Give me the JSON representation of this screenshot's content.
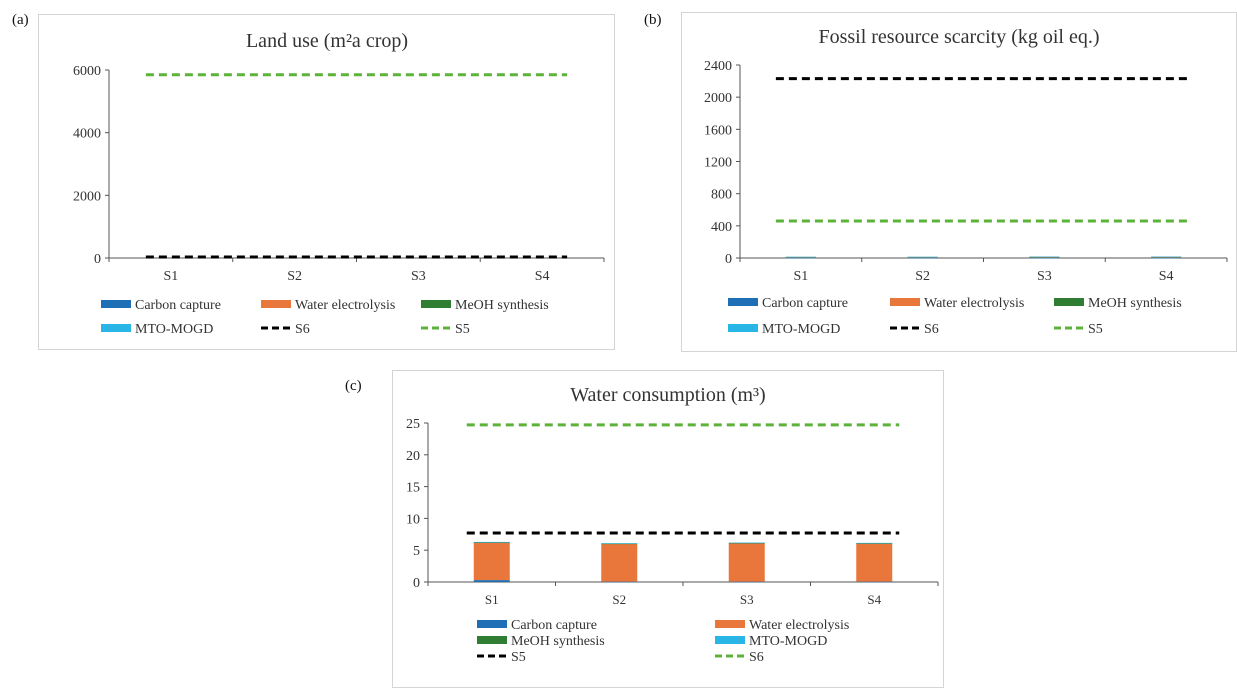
{
  "panels": [
    {
      "letter": "(a)"
    },
    {
      "letter": "(b)"
    },
    {
      "letter": "(c)"
    }
  ],
  "chart_data": [
    {
      "type": "bar",
      "stacked": true,
      "title": "Land use (m²a crop)",
      "categories": [
        "S1",
        "S2",
        "S3",
        "S4"
      ],
      "ylim": [
        0,
        6000
      ],
      "yticks": [
        "0",
        "2000",
        "4000",
        "6000"
      ],
      "series": [
        {
          "name": "Carbon capture",
          "color": "#1f6fb6",
          "values": [
            2,
            2,
            2,
            2
          ]
        },
        {
          "name": "Water electrolysis",
          "color": "#e9773b",
          "values": [
            10,
            10,
            10,
            10
          ]
        },
        {
          "name": "MeOH synthesis",
          "color": "#2e7d32",
          "values": [
            1,
            1,
            1,
            1
          ]
        },
        {
          "name": "MTO-MOGD",
          "color": "#29b6e6",
          "values": [
            1,
            1,
            1,
            1
          ]
        }
      ],
      "reference_lines": [
        {
          "name": "S6",
          "color": "#000000",
          "value": 30
        },
        {
          "name": "S5",
          "color": "#5db33a",
          "value": 5850
        }
      ],
      "grid": false,
      "legend": "bottom"
    },
    {
      "type": "bar",
      "stacked": true,
      "title": "Fossil resource scarcity (kg oil eq.)",
      "categories": [
        "S1",
        "S2",
        "S3",
        "S4"
      ],
      "ylim": [
        0,
        2400
      ],
      "yticks": [
        "0",
        "400",
        "800",
        "1200",
        "1600",
        "2000",
        "2400"
      ],
      "series": [
        {
          "name": "Carbon capture",
          "color": "#1f6fb6",
          "values": [
            3,
            3,
            3,
            3
          ]
        },
        {
          "name": "Water electrolysis",
          "color": "#e9773b",
          "values": [
            10,
            10,
            12,
            12
          ]
        },
        {
          "name": "MeOH synthesis",
          "color": "#2e7d32",
          "values": [
            1,
            1,
            1,
            1
          ]
        },
        {
          "name": "MTO-MOGD",
          "color": "#29b6e6",
          "values": [
            1,
            1,
            1,
            1
          ]
        }
      ],
      "reference_lines": [
        {
          "name": "S6",
          "color": "#000000",
          "value": 2230
        },
        {
          "name": "S5",
          "color": "#5db33a",
          "value": 460
        }
      ],
      "grid": false,
      "legend": "bottom"
    },
    {
      "type": "bar",
      "stacked": true,
      "title": "Water consumption (m³)",
      "categories": [
        "S1",
        "S2",
        "S3",
        "S4"
      ],
      "ylim": [
        0,
        25
      ],
      "yticks": [
        "0",
        "5",
        "10",
        "15",
        "20",
        "25"
      ],
      "series": [
        {
          "name": "Carbon capture",
          "color": "#1f6fb6",
          "values": [
            0.3,
            0.05,
            0.05,
            0.05
          ]
        },
        {
          "name": "Water electrolysis",
          "color": "#e9773b",
          "values": [
            5.9,
            5.95,
            6.05,
            6.0
          ]
        },
        {
          "name": "MeOH synthesis",
          "color": "#2e7d32",
          "values": [
            0.05,
            0.05,
            0.05,
            0.05
          ]
        },
        {
          "name": "MTO-MOGD",
          "color": "#29b6e6",
          "values": [
            0.05,
            0.05,
            0.05,
            0.05
          ]
        }
      ],
      "reference_lines": [
        {
          "name": "S5",
          "color": "#000000",
          "value": 7.7
        },
        {
          "name": "S6",
          "color": "#5db33a",
          "value": 24.7
        }
      ],
      "grid": false,
      "legend": "bottom"
    }
  ]
}
